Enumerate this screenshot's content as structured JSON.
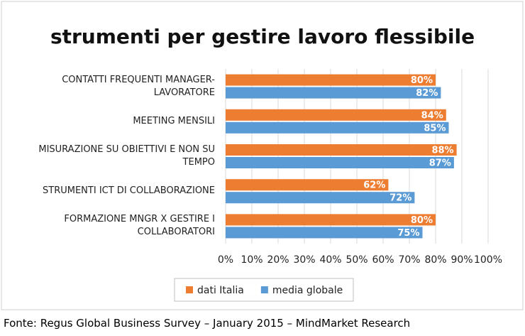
{
  "chart_data": {
    "type": "bar",
    "orientation": "horizontal",
    "title": "strumenti per gestire lavoro flessibile",
    "categories": [
      "CONTATTI FREQUENTI MANAGER-LAVORATORE",
      "MEETING MENSILI",
      "MISURAZIONE SU OBIETTIVI E NON SU TEMPO",
      "STRUMENTI ICT DI COLLABORAZIONE",
      "FORMAZIONE  MNGR X GESTIRE I COLLABORATORI"
    ],
    "series": [
      {
        "name": "dati Italia",
        "color": "#ed7d31",
        "values": [
          80,
          84,
          88,
          62,
          80
        ],
        "value_labels": [
          "80%",
          "84%",
          "88%",
          "62%",
          "80%"
        ]
      },
      {
        "name": "media globale",
        "color": "#5b9bd5",
        "values": [
          82,
          85,
          87,
          72,
          75
        ],
        "value_labels": [
          "82%",
          "85%",
          "87%",
          "72%",
          "75%"
        ]
      }
    ],
    "xlim": [
      0,
      100
    ],
    "xticks": [
      {
        "value": 0,
        "label": "0%"
      },
      {
        "value": 10,
        "label": "10%"
      },
      {
        "value": 20,
        "label": "20%"
      },
      {
        "value": 30,
        "label": "30%"
      },
      {
        "value": 40,
        "label": "40%"
      },
      {
        "value": 50,
        "label": "50%"
      },
      {
        "value": 60,
        "label": "60%"
      },
      {
        "value": 70,
        "label": "70%"
      },
      {
        "value": 80,
        "label": "80%"
      },
      {
        "value": 90,
        "label": "90%"
      },
      {
        "value": 100,
        "label": "100%"
      }
    ],
    "grid": true,
    "legend": "bottom"
  },
  "footer": "Fonte: Regus Global Business Survey – January 2015 – MindMarket Research"
}
